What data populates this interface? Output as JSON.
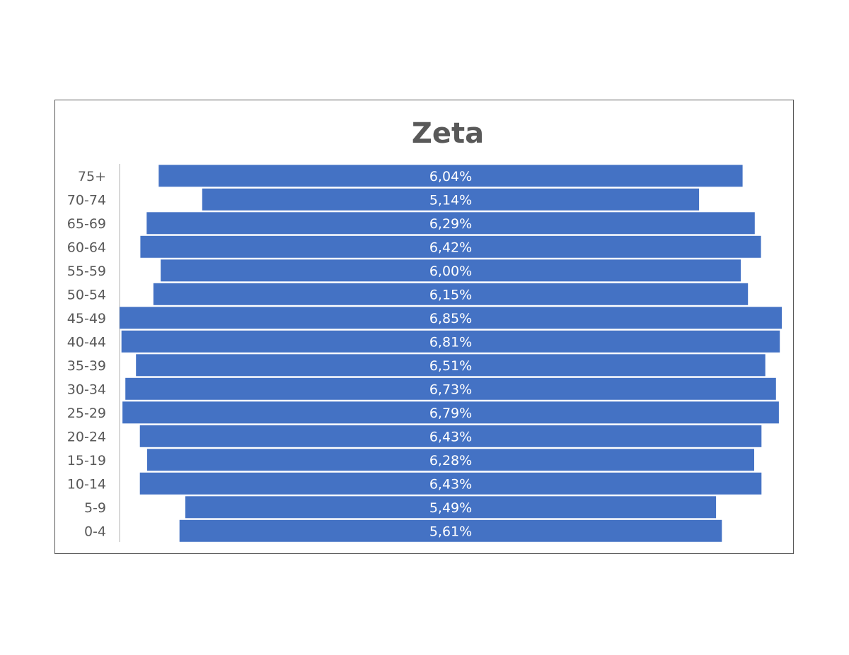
{
  "chart_data": {
    "type": "bar",
    "orientation": "horizontal",
    "title": "Zeta",
    "categories": [
      "75+",
      "70-74",
      "65-69",
      "60-64",
      "55-59",
      "50-54",
      "45-49",
      "40-44",
      "35-39",
      "30-34",
      "25-29",
      "20-24",
      "15-19",
      "10-14",
      "5-9",
      "0-4"
    ],
    "values": [
      6.04,
      5.14,
      6.29,
      6.42,
      6.0,
      6.15,
      6.85,
      6.81,
      6.51,
      6.73,
      6.79,
      6.43,
      6.28,
      6.43,
      5.49,
      5.61
    ],
    "data_labels": [
      "6,04%",
      "5,14%",
      "6,29%",
      "6,42%",
      "6,00%",
      "6,15%",
      "6,85%",
      "6,81%",
      "6,51%",
      "6,73%",
      "6,79%",
      "6,43%",
      "6,28%",
      "6,43%",
      "5,49%",
      "5,61%"
    ],
    "value_unit": "%",
    "bars_centered": true,
    "legend": "none",
    "grid": false,
    "colors": {
      "bar": "#4472C4",
      "bar_label": "#FFFFFF",
      "text": "#595959",
      "axis": "#D9D9D9",
      "frame": "#595959"
    }
  }
}
